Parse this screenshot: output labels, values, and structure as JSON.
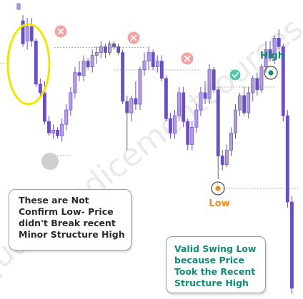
{
  "chart_data": {
    "type": "candlestick",
    "title": "",
    "xlabel": "",
    "ylabel": "",
    "grid": false,
    "candles": [
      {
        "o": 99,
        "h": 101,
        "l": 99,
        "c": 101,
        "color": "up"
      },
      {
        "o": 95,
        "h": 97,
        "l": 86,
        "c": 87,
        "color": "down"
      },
      {
        "o": 88,
        "h": 96,
        "l": 85,
        "c": 93,
        "color": "up"
      },
      {
        "o": 93,
        "h": 96,
        "l": 86,
        "c": 88,
        "color": "down"
      },
      {
        "o": 88,
        "h": 89,
        "l": 72,
        "c": 73,
        "color": "down"
      },
      {
        "o": 73,
        "h": 75,
        "l": 69,
        "c": 70,
        "color": "down"
      },
      {
        "o": 70,
        "h": 74,
        "l": 59,
        "c": 60,
        "color": "down"
      },
      {
        "o": 60,
        "h": 62,
        "l": 55,
        "c": 56,
        "color": "down"
      },
      {
        "o": 56,
        "h": 59,
        "l": 54,
        "c": 57,
        "color": "up"
      },
      {
        "o": 57,
        "h": 58,
        "l": 54,
        "c": 55,
        "color": "down"
      },
      {
        "o": 55,
        "h": 61,
        "l": 53,
        "c": 59,
        "color": "up"
      },
      {
        "o": 59,
        "h": 66,
        "l": 57,
        "c": 64,
        "color": "up"
      },
      {
        "o": 64,
        "h": 72,
        "l": 62,
        "c": 70,
        "color": "up"
      },
      {
        "o": 70,
        "h": 79,
        "l": 68,
        "c": 77,
        "color": "up"
      },
      {
        "o": 77,
        "h": 81,
        "l": 74,
        "c": 76,
        "color": "down"
      },
      {
        "o": 76,
        "h": 83,
        "l": 74,
        "c": 81,
        "color": "up"
      },
      {
        "o": 81,
        "h": 82,
        "l": 78,
        "c": 79,
        "color": "down"
      },
      {
        "o": 79,
        "h": 85,
        "l": 77,
        "c": 83,
        "color": "up"
      },
      {
        "o": 83,
        "h": 86,
        "l": 80,
        "c": 84,
        "color": "up"
      },
      {
        "o": 84,
        "h": 88,
        "l": 82,
        "c": 86,
        "color": "up"
      },
      {
        "o": 86,
        "h": 87,
        "l": 82,
        "c": 84,
        "color": "down"
      },
      {
        "o": 84,
        "h": 88,
        "l": 83,
        "c": 87,
        "color": "up"
      },
      {
        "o": 87,
        "h": 88,
        "l": 85,
        "c": 86,
        "color": "down"
      },
      {
        "o": 86,
        "h": 87,
        "l": 83,
        "c": 84,
        "color": "down"
      },
      {
        "o": 84,
        "h": 85,
        "l": 66,
        "c": 67,
        "color": "down"
      },
      {
        "o": 67,
        "h": 69,
        "l": 50,
        "c": 63,
        "color": "down"
      },
      {
        "o": 63,
        "h": 69,
        "l": 60,
        "c": 68,
        "color": "up"
      },
      {
        "o": 68,
        "h": 74,
        "l": 64,
        "c": 66,
        "color": "down"
      },
      {
        "o": 66,
        "h": 79,
        "l": 64,
        "c": 78,
        "color": "up"
      },
      {
        "o": 78,
        "h": 84,
        "l": 76,
        "c": 81,
        "color": "up"
      },
      {
        "o": 81,
        "h": 86,
        "l": 78,
        "c": 84,
        "color": "up"
      },
      {
        "o": 84,
        "h": 85,
        "l": 78,
        "c": 79,
        "color": "down"
      },
      {
        "o": 79,
        "h": 83,
        "l": 77,
        "c": 81,
        "color": "up"
      },
      {
        "o": 81,
        "h": 83,
        "l": 74,
        "c": 75,
        "color": "down"
      },
      {
        "o": 75,
        "h": 76,
        "l": 60,
        "c": 61,
        "color": "down"
      },
      {
        "o": 61,
        "h": 63,
        "l": 54,
        "c": 56,
        "color": "down"
      },
      {
        "o": 56,
        "h": 64,
        "l": 54,
        "c": 62,
        "color": "up"
      },
      {
        "o": 62,
        "h": 72,
        "l": 60,
        "c": 70,
        "color": "up"
      },
      {
        "o": 70,
        "h": 72,
        "l": 58,
        "c": 60,
        "color": "down"
      },
      {
        "o": 60,
        "h": 61,
        "l": 50,
        "c": 52,
        "color": "down"
      },
      {
        "o": 52,
        "h": 60,
        "l": 50,
        "c": 58,
        "color": "up"
      },
      {
        "o": 58,
        "h": 66,
        "l": 56,
        "c": 64,
        "color": "up"
      },
      {
        "o": 64,
        "h": 72,
        "l": 62,
        "c": 70,
        "color": "up"
      },
      {
        "o": 70,
        "h": 74,
        "l": 66,
        "c": 68,
        "color": "down"
      },
      {
        "o": 68,
        "h": 80,
        "l": 66,
        "c": 78,
        "color": "up"
      },
      {
        "o": 78,
        "h": 79,
        "l": 70,
        "c": 71,
        "color": "down"
      },
      {
        "o": 71,
        "h": 72,
        "l": 40,
        "c": 48,
        "color": "down"
      },
      {
        "o": 48,
        "h": 50,
        "l": 43,
        "c": 45,
        "color": "down"
      },
      {
        "o": 45,
        "h": 52,
        "l": 44,
        "c": 50,
        "color": "up"
      },
      {
        "o": 50,
        "h": 58,
        "l": 48,
        "c": 56,
        "color": "up"
      },
      {
        "o": 56,
        "h": 66,
        "l": 54,
        "c": 64,
        "color": "up"
      },
      {
        "o": 64,
        "h": 70,
        "l": 62,
        "c": 69,
        "color": "up"
      },
      {
        "o": 69,
        "h": 72,
        "l": 62,
        "c": 63,
        "color": "down"
      },
      {
        "o": 63,
        "h": 72,
        "l": 61,
        "c": 70,
        "color": "up"
      },
      {
        "o": 70,
        "h": 76,
        "l": 67,
        "c": 75,
        "color": "up"
      },
      {
        "o": 75,
        "h": 77,
        "l": 69,
        "c": 71,
        "color": "down"
      },
      {
        "o": 71,
        "h": 80,
        "l": 70,
        "c": 79,
        "color": "up"
      },
      {
        "o": 79,
        "h": 88,
        "l": 77,
        "c": 85,
        "color": "up"
      },
      {
        "o": 85,
        "h": 88,
        "l": 81,
        "c": 82,
        "color": "down"
      },
      {
        "o": 82,
        "h": 90,
        "l": 80,
        "c": 89,
        "color": "up"
      },
      {
        "o": 89,
        "h": 92,
        "l": 85,
        "c": 86,
        "color": "down"
      },
      {
        "o": 86,
        "h": 87,
        "l": 60,
        "c": 62,
        "color": "down"
      },
      {
        "o": 62,
        "h": 64,
        "l": 30,
        "c": 32,
        "color": "down"
      },
      {
        "o": 32,
        "h": 34,
        "l": 0,
        "c": 2,
        "color": "down"
      }
    ],
    "annotations": {
      "high_label": "High",
      "low_label": "Low",
      "callout_left": "These are Not\nConfirm Low- Price\ndidn't Break recent\nMinor Structure High",
      "callout_right": "Valid Swing Low\nbecause Price\nTook the Recent\nStructure High",
      "watermark": "qualityindicementcourses.com"
    },
    "colors": {
      "up": "#b39ddb",
      "down": "#6a4fc3",
      "teal": "#128a73",
      "orange": "#ef8a1e",
      "red_x": "#f4a3a3",
      "yellow": "#f2e600"
    }
  }
}
